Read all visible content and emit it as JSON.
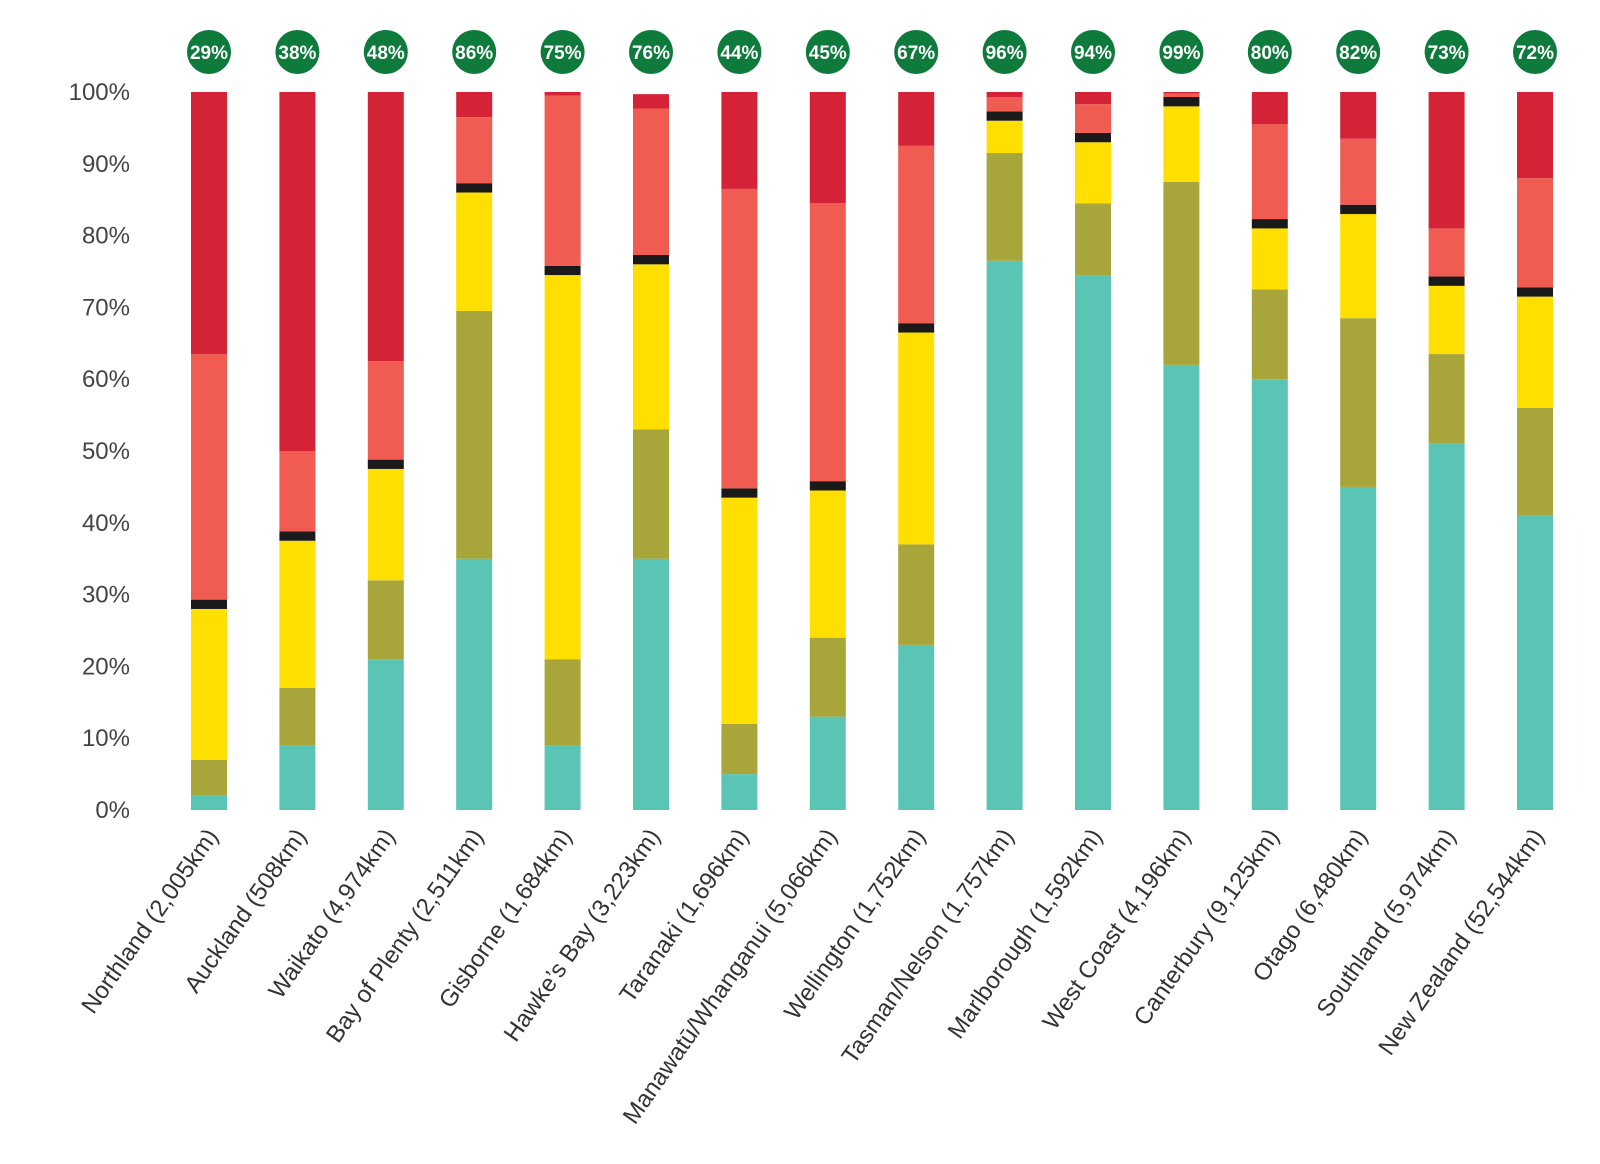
{
  "chart_data": {
    "type": "bar",
    "stacked": true,
    "title": "",
    "xlabel": "",
    "ylabel": "",
    "ylim": [
      0,
      100
    ],
    "y_tick_labels": [
      "0%",
      "10%",
      "20%",
      "30%",
      "40%",
      "50%",
      "60%",
      "70%",
      "80%",
      "90%",
      "100%"
    ],
    "categories": [
      "Northland (2,005km)",
      "Auckland (508km)",
      "Waikato (4,974km)",
      "Bay of Plenty (2,511km)",
      "Gisborne (1,684km)",
      "Hawke’s Bay (3,223km)",
      "Taranaki (1,696km)",
      "Manawatū/Whanganui (5,066km)",
      "Wellington (1,752km)",
      "Tasman/Nelson (1,757km)",
      "Marlborough (1,592km)",
      "West Coast (4,196km)",
      "Canterbury (9,125km)",
      "Otago (6,480km)",
      "Southland (5,974km)",
      "New Zealand (52,544km)"
    ],
    "badges": [
      "29%",
      "38%",
      "48%",
      "86%",
      "75%",
      "76%",
      "44%",
      "45%",
      "67%",
      "96%",
      "94%",
      "99%",
      "80%",
      "82%",
      "73%",
      "72%"
    ],
    "series": [
      {
        "name": "teal",
        "color": "#5bc5b5",
        "values": [
          2,
          9,
          21,
          35,
          9,
          35,
          5,
          13,
          23,
          76.5,
          74.5,
          62,
          60,
          45,
          51,
          41
        ]
      },
      {
        "name": "olive",
        "color": "#a8a63a",
        "values": [
          5,
          8,
          11,
          34.5,
          12,
          18,
          7,
          11,
          14,
          15,
          10,
          25.5,
          12.5,
          23.5,
          12.5,
          15
        ]
      },
      {
        "name": "yellow",
        "color": "#ffdf00",
        "values": [
          21,
          20.5,
          15.5,
          16.5,
          53.5,
          23,
          31.5,
          20.5,
          29.5,
          4.5,
          8.5,
          10.5,
          8.5,
          14.5,
          9.5,
          15.5
        ]
      },
      {
        "name": "black",
        "color": "#1a1a1a",
        "values": [
          1.3,
          1.3,
          1.3,
          1.3,
          1.3,
          1.3,
          1.3,
          1.3,
          1.3,
          1.3,
          1.3,
          1.3,
          1.3,
          1.3,
          1.3,
          1.3
        ]
      },
      {
        "name": "salmon",
        "color": "#f05c52",
        "values": [
          34.2,
          11.2,
          13.7,
          9.2,
          23.7,
          20.4,
          41.7,
          38.7,
          24.7,
          2,
          4,
          0.5,
          13.2,
          9.2,
          6.7,
          15.2
        ]
      },
      {
        "name": "red",
        "color": "#d42236",
        "values": [
          36.5,
          50,
          37.5,
          3.5,
          0.5,
          2,
          13.5,
          16,
          8,
          0.7,
          1.7,
          0.2,
          4.5,
          6.5,
          19.5,
          12
        ]
      }
    ],
    "badge_color": "#0e7a3b",
    "grid": false,
    "legend": "none"
  }
}
